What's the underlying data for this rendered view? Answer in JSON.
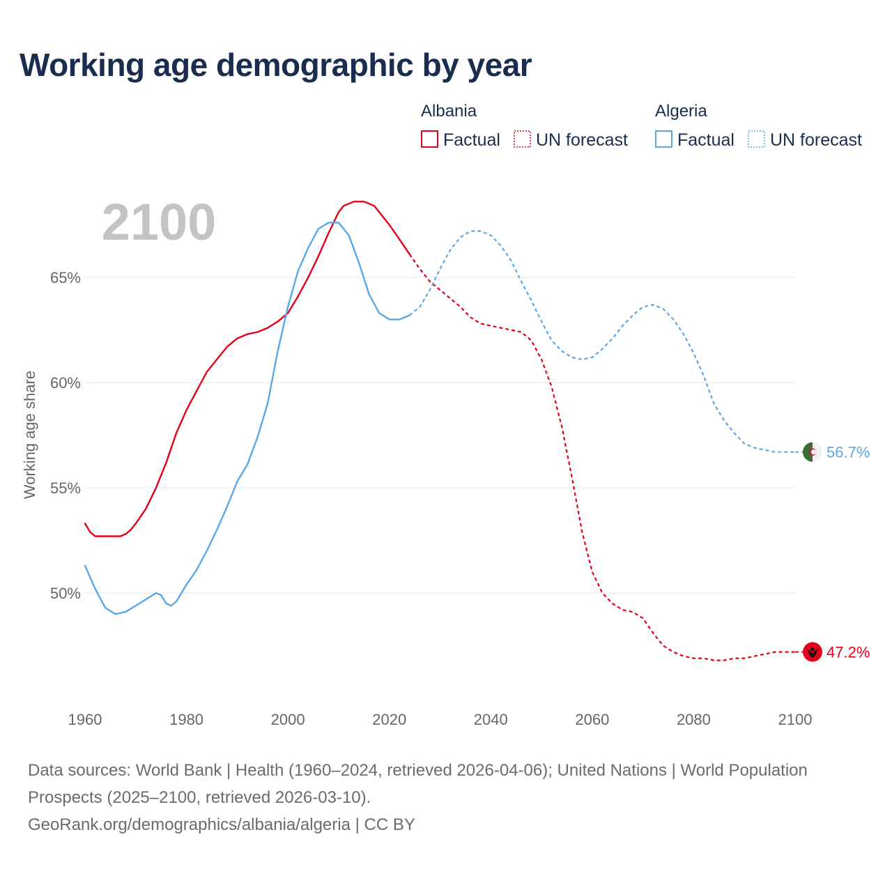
{
  "chart_data": {
    "type": "line",
    "title": "Working age demographic by year",
    "year_label": "2100",
    "ylabel": "Working age share",
    "xlim": [
      1960,
      2100
    ],
    "ylim": [
      45,
      70
    ],
    "x_ticks": [
      {
        "value": 1960,
        "label": "1960"
      },
      {
        "value": 1980,
        "label": "1980"
      },
      {
        "value": 2000,
        "label": "2000"
      },
      {
        "value": 2020,
        "label": "2020"
      },
      {
        "value": 2040,
        "label": "2040"
      },
      {
        "value": 2060,
        "label": "2060"
      },
      {
        "value": 2080,
        "label": "2080"
      },
      {
        "value": 2100,
        "label": "2100"
      }
    ],
    "y_ticks": [
      {
        "value": 50,
        "label": "50%"
      },
      {
        "value": 55,
        "label": "55%"
      },
      {
        "value": 60,
        "label": "60%"
      },
      {
        "value": 65,
        "label": "65%"
      }
    ],
    "legend": {
      "groups": [
        {
          "country": "Albania",
          "color": "#e3001b",
          "factual_label": "Factual",
          "forecast_label": "UN forecast"
        },
        {
          "country": "Algeria",
          "color": "#5aa7e6",
          "factual_label": "Factual",
          "forecast_label": "UN forecast"
        }
      ]
    },
    "series": [
      {
        "name": "Albania",
        "color": "#e3001b",
        "end_label": "47.2%",
        "flag_icon": "albania-flag-icon",
        "factual": {
          "x": [
            1960,
            1961,
            1962,
            1964,
            1967,
            1968,
            1969,
            1970,
            1972,
            1974,
            1976,
            1978,
            1980,
            1982,
            1984,
            1986,
            1988,
            1990,
            1992,
            1994,
            1996,
            1998,
            2000,
            2002,
            2004,
            2006,
            2008,
            2010,
            2011,
            2012,
            2013,
            2014,
            2015,
            2016,
            2017,
            2018,
            2020,
            2022,
            2024
          ],
          "y": [
            53.3,
            52.9,
            52.7,
            52.7,
            52.7,
            52.8,
            53.0,
            53.3,
            54.0,
            55.0,
            56.2,
            57.6,
            58.7,
            59.6,
            60.5,
            61.1,
            61.7,
            62.1,
            62.3,
            62.4,
            62.6,
            62.9,
            63.3,
            64.1,
            65.0,
            66.0,
            67.1,
            68.1,
            68.4,
            68.5,
            68.6,
            68.6,
            68.6,
            68.5,
            68.4,
            68.1,
            67.5,
            66.8,
            66.1
          ]
        },
        "forecast": {
          "x": [
            2024,
            2026,
            2028,
            2030,
            2032,
            2034,
            2036,
            2038,
            2040,
            2042,
            2044,
            2046,
            2048,
            2050,
            2052,
            2054,
            2056,
            2058,
            2060,
            2062,
            2064,
            2066,
            2068,
            2070,
            2072,
            2074,
            2076,
            2078,
            2080,
            2082,
            2084,
            2086,
            2088,
            2090,
            2092,
            2094,
            2096,
            2098,
            2100
          ],
          "y": [
            66.1,
            65.4,
            64.8,
            64.4,
            64.0,
            63.6,
            63.1,
            62.8,
            62.7,
            62.6,
            62.5,
            62.4,
            62.0,
            61.1,
            59.8,
            57.9,
            55.5,
            52.9,
            51.0,
            50.0,
            49.5,
            49.2,
            49.1,
            48.8,
            48.1,
            47.5,
            47.2,
            47.0,
            46.9,
            46.9,
            46.8,
            46.8,
            46.9,
            46.9,
            47.0,
            47.1,
            47.2,
            47.2,
            47.2
          ]
        }
      },
      {
        "name": "Algeria",
        "color": "#5aa7e6",
        "end_label": "56.7%",
        "flag_icon": "algeria-flag-icon",
        "factual": {
          "x": [
            1960,
            1962,
            1964,
            1966,
            1968,
            1970,
            1972,
            1974,
            1975,
            1976,
            1977,
            1978,
            1980,
            1982,
            1984,
            1986,
            1988,
            1990,
            1992,
            1994,
            1996,
            1998,
            2000,
            2002,
            2004,
            2006,
            2008,
            2010,
            2012,
            2014,
            2016,
            2018,
            2020,
            2022,
            2024
          ],
          "y": [
            51.3,
            50.2,
            49.3,
            49.0,
            49.1,
            49.4,
            49.7,
            50.0,
            49.9,
            49.5,
            49.4,
            49.6,
            50.4,
            51.1,
            52.0,
            53.0,
            54.1,
            55.3,
            56.1,
            57.4,
            59.0,
            61.5,
            63.6,
            65.3,
            66.4,
            67.3,
            67.6,
            67.6,
            67.0,
            65.7,
            64.2,
            63.3,
            63.0,
            63.0,
            63.2
          ]
        },
        "forecast": {
          "x": [
            2024,
            2026,
            2028,
            2030,
            2032,
            2034,
            2036,
            2038,
            2040,
            2042,
            2044,
            2046,
            2048,
            2050,
            2052,
            2054,
            2056,
            2058,
            2060,
            2062,
            2064,
            2066,
            2068,
            2070,
            2072,
            2074,
            2076,
            2078,
            2080,
            2082,
            2084,
            2086,
            2088,
            2090,
            2092,
            2094,
            2096,
            2098,
            2100
          ],
          "y": [
            63.2,
            63.6,
            64.4,
            65.4,
            66.3,
            66.9,
            67.2,
            67.2,
            67.0,
            66.5,
            65.8,
            64.8,
            63.9,
            62.9,
            62.0,
            61.5,
            61.2,
            61.1,
            61.2,
            61.6,
            62.1,
            62.7,
            63.2,
            63.6,
            63.7,
            63.5,
            63.0,
            62.3,
            61.4,
            60.3,
            59.0,
            58.2,
            57.6,
            57.1,
            56.9,
            56.8,
            56.7,
            56.7,
            56.7
          ]
        }
      }
    ]
  },
  "footer": {
    "sources": "Data sources: World Bank | Health (1960–2024, retrieved 2026-04-06); United Nations | World Population Prospects (2025–2100, retrieved 2026-03-10).",
    "credit": "GeoRank.org/demographics/albania/algeria | CC BY"
  }
}
